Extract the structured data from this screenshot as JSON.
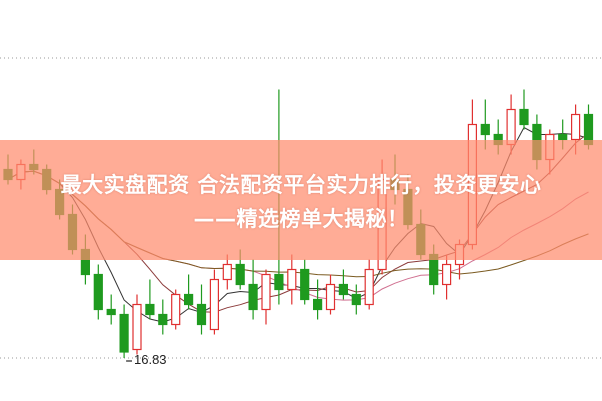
{
  "headline": {
    "line1": "最大实盘配资 合法配资平台实力排行，投资更安心",
    "line2": "——精选榜单大揭秘！"
  },
  "chart_data": {
    "type": "candlestick",
    "title": "",
    "grid": true,
    "ylim": [
      16.5,
      22.9
    ],
    "annotation": {
      "label": "16.83",
      "value": 16.83,
      "candle_index": 9
    },
    "colors": {
      "up": "#e03030",
      "down": "#1f9a1f",
      "ma5": "#333333",
      "ma10": "#8b3a3a",
      "ma20": "#d07090",
      "ma60": "#7a5a20"
    },
    "candles": [
      [
        20.6,
        20.9,
        20.3,
        20.4
      ],
      [
        20.4,
        20.8,
        20.2,
        20.7
      ],
      [
        20.7,
        21.0,
        20.5,
        20.6
      ],
      [
        20.6,
        20.7,
        20.1,
        20.2
      ],
      [
        20.2,
        20.4,
        19.6,
        19.7
      ],
      [
        19.7,
        19.9,
        18.9,
        19.0
      ],
      [
        19.0,
        19.3,
        18.3,
        18.5
      ],
      [
        18.5,
        18.7,
        17.6,
        17.8
      ],
      [
        17.8,
        18.1,
        17.5,
        17.7
      ],
      [
        17.7,
        17.9,
        16.83,
        16.95
      ],
      [
        17.0,
        18.1,
        16.9,
        17.9
      ],
      [
        17.9,
        18.4,
        17.6,
        17.7
      ],
      [
        17.7,
        18.0,
        17.3,
        17.5
      ],
      [
        17.5,
        18.2,
        17.4,
        18.1
      ],
      [
        18.1,
        18.5,
        17.8,
        17.9
      ],
      [
        17.9,
        18.3,
        17.3,
        17.5
      ],
      [
        17.4,
        18.6,
        17.3,
        18.4
      ],
      [
        18.4,
        18.9,
        18.2,
        18.7
      ],
      [
        18.7,
        19.0,
        18.2,
        18.3
      ],
      [
        18.3,
        18.8,
        17.6,
        17.8
      ],
      [
        17.8,
        18.6,
        17.5,
        18.5
      ],
      [
        18.5,
        22.2,
        17.9,
        18.2
      ],
      [
        18.2,
        18.9,
        17.9,
        18.6
      ],
      [
        18.6,
        18.8,
        17.9,
        18.0
      ],
      [
        18.0,
        18.4,
        17.6,
        17.8
      ],
      [
        17.8,
        18.5,
        17.7,
        18.3
      ],
      [
        18.3,
        18.6,
        18.0,
        18.1
      ],
      [
        18.1,
        18.3,
        17.7,
        17.9
      ],
      [
        17.9,
        18.8,
        17.8,
        18.6
      ],
      [
        18.6,
        20.8,
        18.5,
        20.4
      ],
      [
        20.4,
        20.9,
        19.9,
        20.2
      ],
      [
        20.2,
        20.5,
        19.4,
        19.5
      ],
      [
        19.5,
        19.8,
        18.8,
        18.9
      ],
      [
        18.9,
        19.1,
        18.1,
        18.3
      ],
      [
        18.3,
        18.9,
        18.0,
        18.7
      ],
      [
        18.7,
        19.2,
        18.4,
        19.1
      ],
      [
        19.1,
        22.0,
        19.0,
        21.5
      ],
      [
        21.5,
        22.0,
        21.0,
        21.3
      ],
      [
        21.3,
        21.6,
        20.9,
        21.1
      ],
      [
        21.1,
        22.1,
        20.9,
        21.8
      ],
      [
        21.8,
        22.2,
        21.4,
        21.5
      ],
      [
        21.5,
        21.7,
        20.6,
        20.8
      ],
      [
        20.8,
        21.4,
        20.5,
        21.3
      ],
      [
        21.3,
        21.6,
        21.0,
        21.2
      ],
      [
        21.2,
        21.9,
        20.9,
        21.7
      ],
      [
        21.7,
        21.9,
        21.0,
        21.1
      ]
    ]
  }
}
